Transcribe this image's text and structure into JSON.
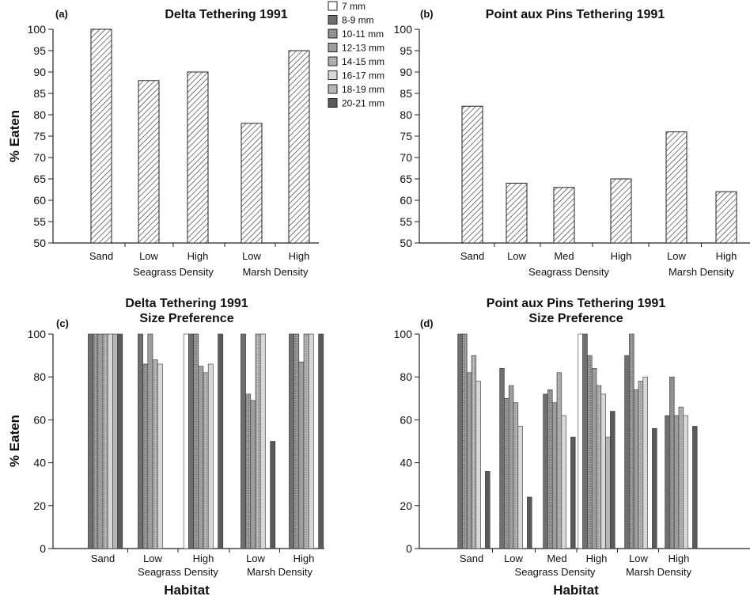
{
  "legend": [
    {
      "label": "7 mm",
      "color": "#ffffff",
      "pattern": "none"
    },
    {
      "label": "8-9 mm",
      "color": "#6f6f6f",
      "pattern": "none"
    },
    {
      "label": "10-11 mm",
      "color": "#8a8a8a",
      "pattern": "dots"
    },
    {
      "label": "12-13 mm",
      "color": "#9e9e9e",
      "pattern": "none"
    },
    {
      "label": "14-15 mm",
      "color": "#a6a6a6",
      "pattern": "dots"
    },
    {
      "label": "16-17 mm",
      "color": "#d8d8d8",
      "pattern": "none"
    },
    {
      "label": "18-19 mm",
      "color": "#b6b6b6",
      "pattern": "none"
    },
    {
      "label": "20-21 mm",
      "color": "#5a5a5a",
      "pattern": "none"
    }
  ],
  "chart_data": [
    {
      "type": "bar",
      "panel": "(a)",
      "title": "Delta Tethering 1991",
      "ylabel": "% Eaten",
      "ylim": [
        50,
        100
      ],
      "yticks": [
        50,
        55,
        60,
        65,
        70,
        75,
        80,
        85,
        90,
        95,
        100
      ],
      "categories": [
        "Sand",
        "Low",
        "High",
        "Low",
        "High"
      ],
      "values": [
        100,
        88,
        90,
        78,
        95
      ],
      "groups": [
        {
          "label": "Seagrass Density",
          "categories": [
            1,
            2
          ]
        },
        {
          "label": "Marsh Density",
          "categories": [
            3,
            4
          ]
        }
      ],
      "bar_style": "hatched"
    },
    {
      "type": "bar",
      "panel": "(b)",
      "title": "Point aux Pins Tethering 1991",
      "ylim": [
        50,
        100
      ],
      "yticks": [
        50,
        55,
        60,
        65,
        70,
        75,
        80,
        85,
        90,
        95,
        100
      ],
      "categories": [
        "Sand",
        "Low",
        "Med",
        "High",
        "Low",
        "High"
      ],
      "values": [
        82,
        64,
        63,
        65,
        76,
        62
      ],
      "groups": [
        {
          "label": "Seagrass Density",
          "categories": [
            1,
            3
          ]
        },
        {
          "label": "Marsh Density",
          "categories": [
            4,
            5
          ]
        }
      ],
      "bar_style": "hatched"
    },
    {
      "type": "bar",
      "panel": "(c)",
      "title": "Delta Tethering 1991",
      "subtitle": "Size Preference",
      "ylabel": "% Eaten",
      "xlabel": "Habitat",
      "ylim": [
        0,
        100
      ],
      "yticks": [
        0,
        20,
        40,
        60,
        80,
        100
      ],
      "categories": [
        "Sand",
        "Low",
        "High",
        "Low",
        "High"
      ],
      "groups": [
        {
          "label": "Seagrass Density",
          "categories": [
            1,
            2
          ]
        },
        {
          "label": "Marsh Density",
          "categories": [
            3,
            4
          ]
        }
      ],
      "series": [
        {
          "name": "7 mm",
          "values": [
            0,
            0,
            100,
            0,
            0
          ]
        },
        {
          "name": "8-9 mm",
          "values": [
            100,
            100,
            100,
            100,
            100
          ]
        },
        {
          "name": "10-11 mm",
          "values": [
            100,
            86,
            100,
            72,
            100
          ]
        },
        {
          "name": "12-13 mm",
          "values": [
            100,
            100,
            85,
            69,
            87
          ]
        },
        {
          "name": "14-15 mm",
          "values": [
            100,
            88,
            82,
            100,
            100
          ]
        },
        {
          "name": "16-17 mm",
          "values": [
            100,
            86,
            86,
            100,
            100
          ]
        },
        {
          "name": "18-19 mm",
          "values": [
            100,
            0,
            0,
            0,
            0
          ]
        },
        {
          "name": "20-21 mm",
          "values": [
            100,
            0,
            100,
            50,
            100
          ]
        }
      ]
    },
    {
      "type": "bar",
      "panel": "(d)",
      "title": "Point aux Pins Tethering 1991",
      "subtitle": "Size Preference",
      "xlabel": "Habitat",
      "ylim": [
        0,
        100
      ],
      "yticks": [
        0,
        20,
        40,
        60,
        80,
        100
      ],
      "categories": [
        "Sand",
        "Low",
        "Med",
        "High",
        "Low",
        "High"
      ],
      "groups": [
        {
          "label": "Seagrass Density",
          "categories": [
            1,
            3
          ]
        },
        {
          "label": "Marsh Density",
          "categories": [
            4,
            5
          ]
        }
      ],
      "series": [
        {
          "name": "7 mm",
          "values": [
            0,
            0,
            0,
            100,
            0,
            0
          ]
        },
        {
          "name": "8-9 mm",
          "values": [
            100,
            84,
            72,
            100,
            90,
            62
          ]
        },
        {
          "name": "10-11 mm",
          "values": [
            100,
            70,
            74,
            90,
            100,
            80
          ]
        },
        {
          "name": "12-13 mm",
          "values": [
            82,
            76,
            68,
            84,
            74,
            62
          ]
        },
        {
          "name": "14-15 mm",
          "values": [
            90,
            68,
            82,
            76,
            78,
            66
          ]
        },
        {
          "name": "16-17 mm",
          "values": [
            78,
            57,
            62,
            72,
            80,
            62
          ]
        },
        {
          "name": "18-19 mm",
          "values": [
            0,
            0,
            0,
            52,
            0,
            0
          ]
        },
        {
          "name": "20-21 mm",
          "values": [
            36,
            24,
            52,
            64,
            56,
            57
          ]
        }
      ]
    }
  ]
}
